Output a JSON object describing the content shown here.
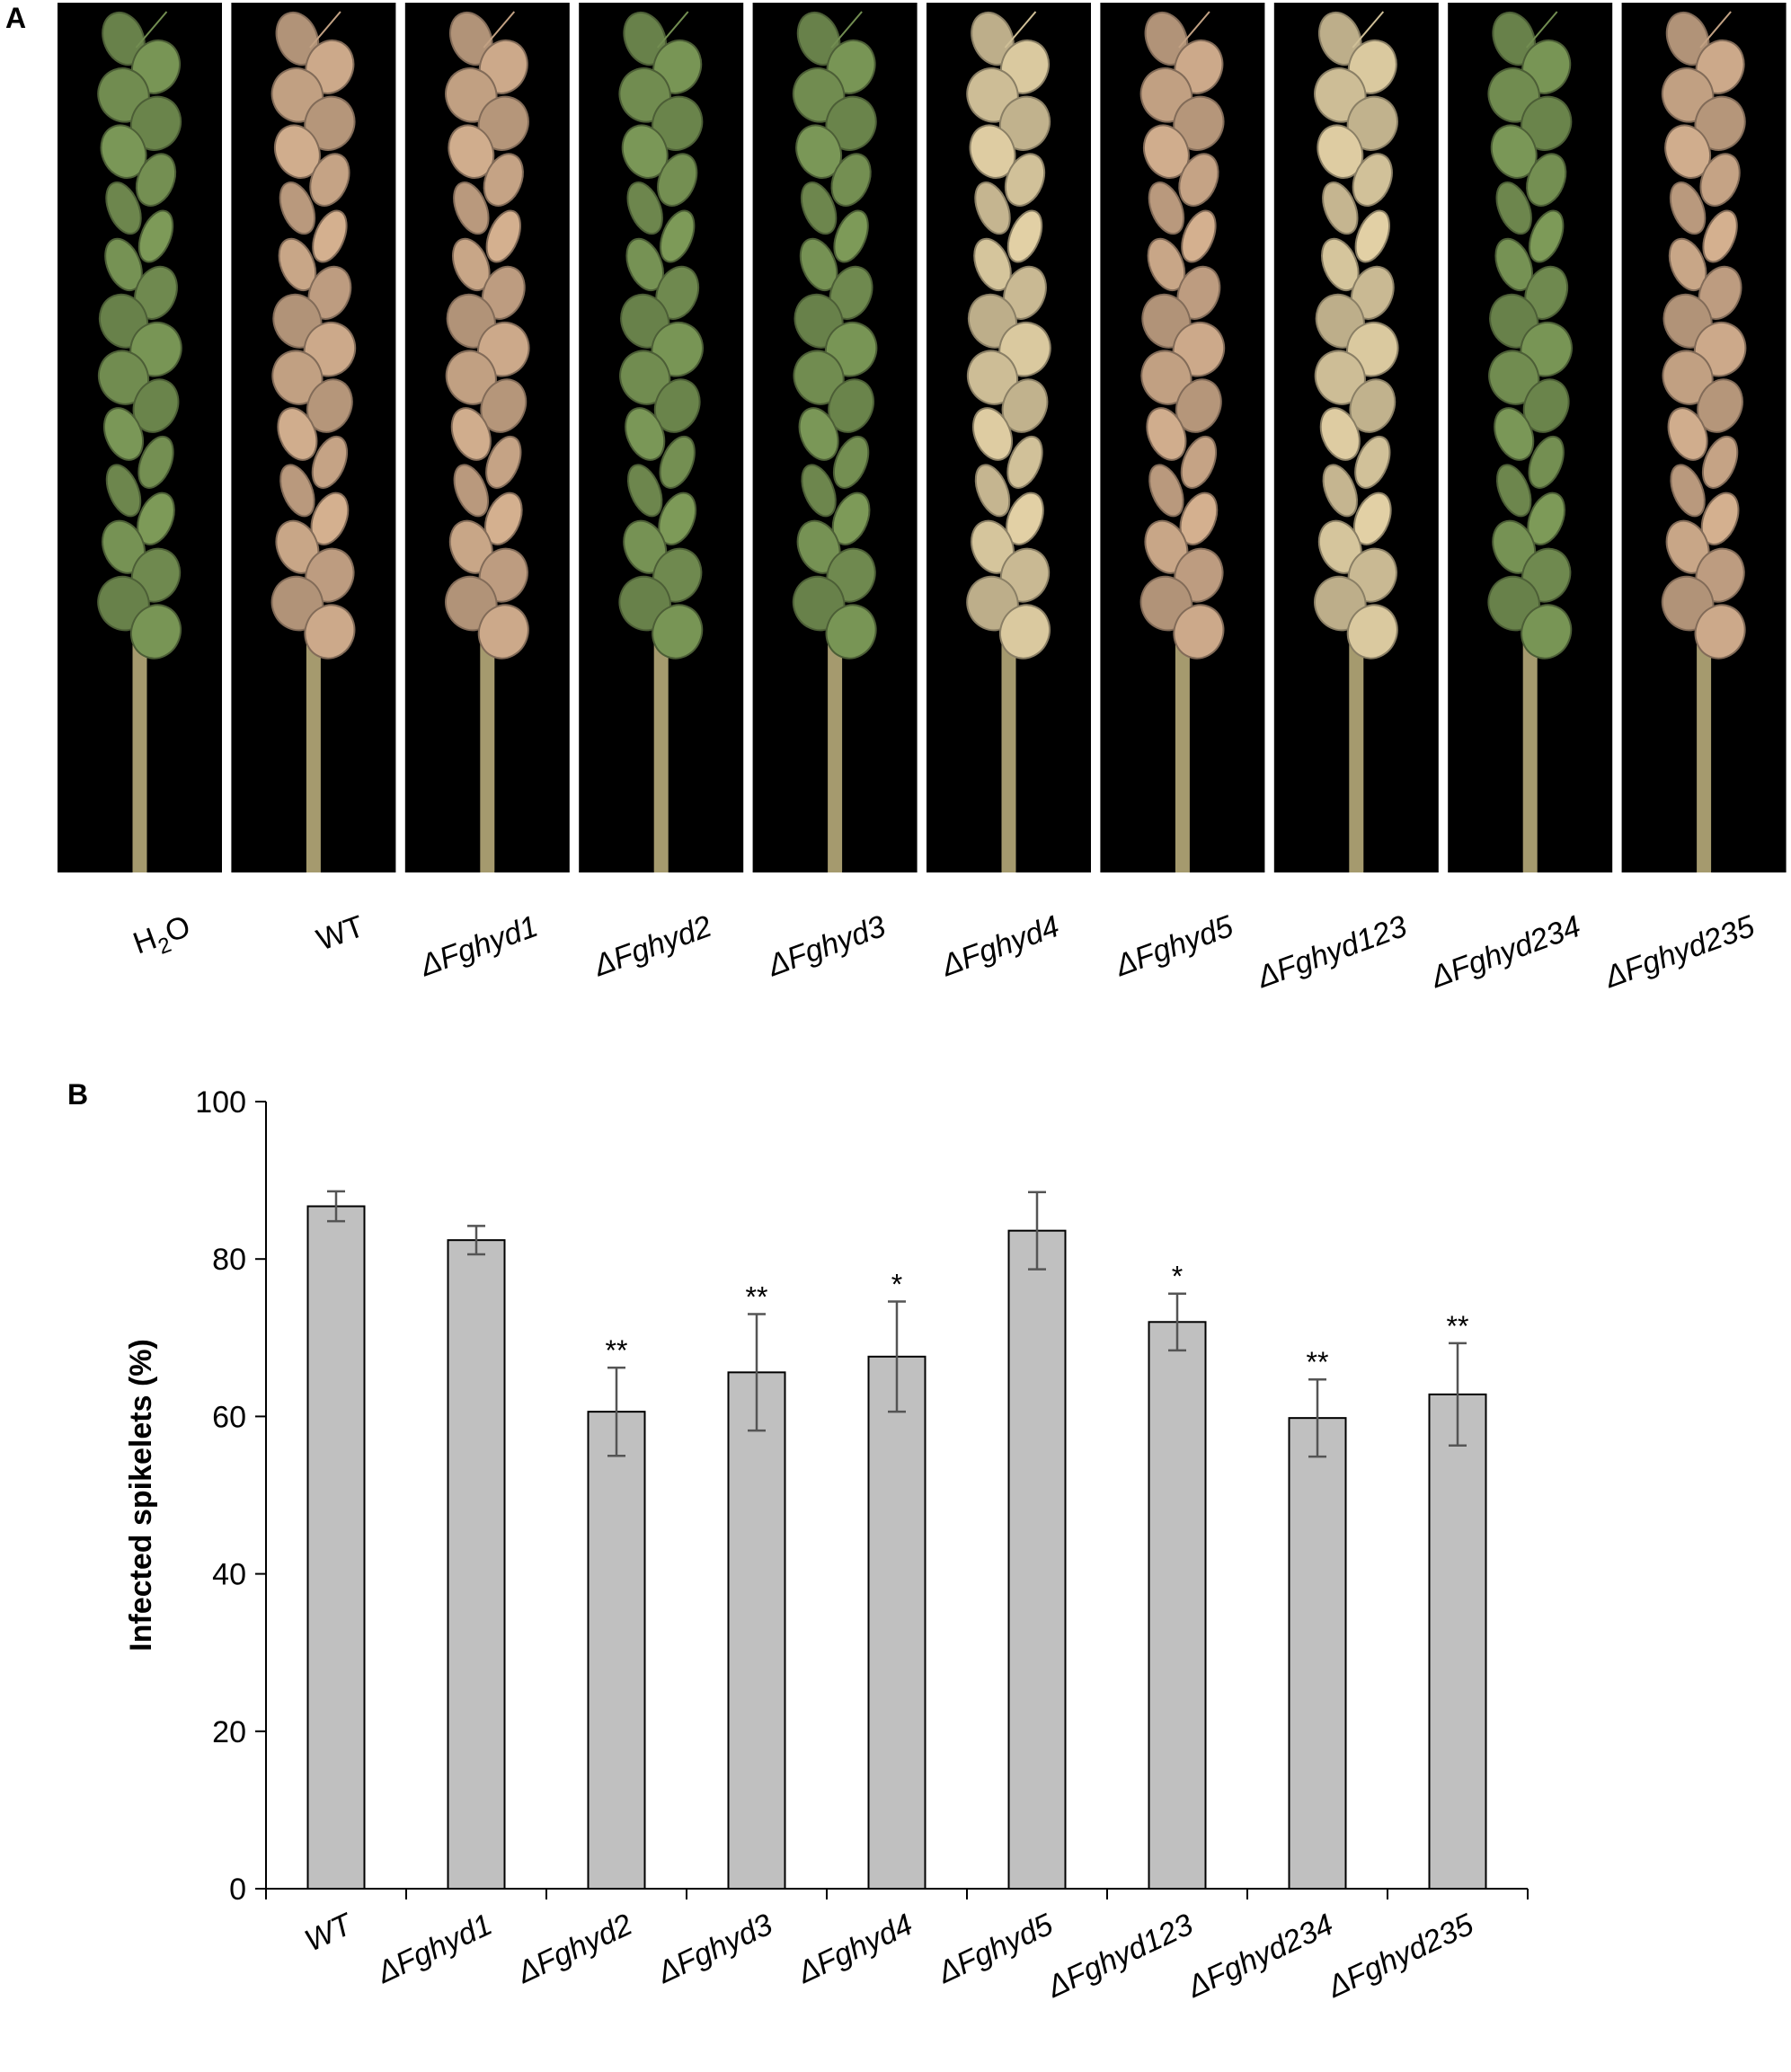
{
  "panel_a": {
    "letter": "A",
    "samples": [
      {
        "sub_pre": "H",
        "sub": "2",
        "sub_post": "O",
        "italic": false,
        "color": "green"
      },
      {
        "label": "WT",
        "italic": false,
        "color": "tan"
      },
      {
        "label": "ΔFghyd1",
        "italic": true,
        "color": "tan"
      },
      {
        "label": "ΔFghyd2",
        "italic": true,
        "color": "green"
      },
      {
        "label": "ΔFghyd3",
        "italic": true,
        "color": "green"
      },
      {
        "label": "ΔFghyd4",
        "italic": true,
        "color": "pale"
      },
      {
        "label": "ΔFghyd5",
        "italic": true,
        "color": "tan"
      },
      {
        "label": "ΔFghyd123",
        "italic": true,
        "color": "pale"
      },
      {
        "label": "ΔFghyd234",
        "italic": true,
        "color": "green"
      },
      {
        "label": "ΔFghyd235",
        "italic": true,
        "color": "tan"
      }
    ],
    "colors": {
      "background": "#000000",
      "green": "#7f9d5a",
      "tan": "#d8b392",
      "pale": "#e6d4a8",
      "stem": "#a59a6e"
    }
  },
  "panel_b": {
    "letter": "B",
    "chart_data": {
      "type": "bar",
      "ylabel": "Infected spikelets (%)",
      "xlabel": "",
      "ylim": [
        0,
        100
      ],
      "yticks": [
        "0",
        "20",
        "40",
        "60",
        "80",
        "100"
      ],
      "grid": false,
      "legend": "none",
      "categories": [
        "WT",
        "ΔFghyd1",
        "ΔFghyd2",
        "ΔFghyd3",
        "ΔFghyd4",
        "ΔFghyd5",
        "ΔFghyd123",
        "ΔFghyd234",
        "ΔFghyd235"
      ],
      "values": [
        86.7,
        82.4,
        60.6,
        65.6,
        67.6,
        83.6,
        72.0,
        59.8,
        62.8
      ],
      "errors": [
        1.9,
        1.8,
        5.6,
        7.4,
        7.0,
        4.9,
        3.6,
        4.9,
        6.5
      ],
      "significance": [
        "",
        "",
        "**",
        "**",
        "*",
        "",
        "*",
        "**",
        "**"
      ],
      "bar_color": "#c0c0c0"
    }
  }
}
